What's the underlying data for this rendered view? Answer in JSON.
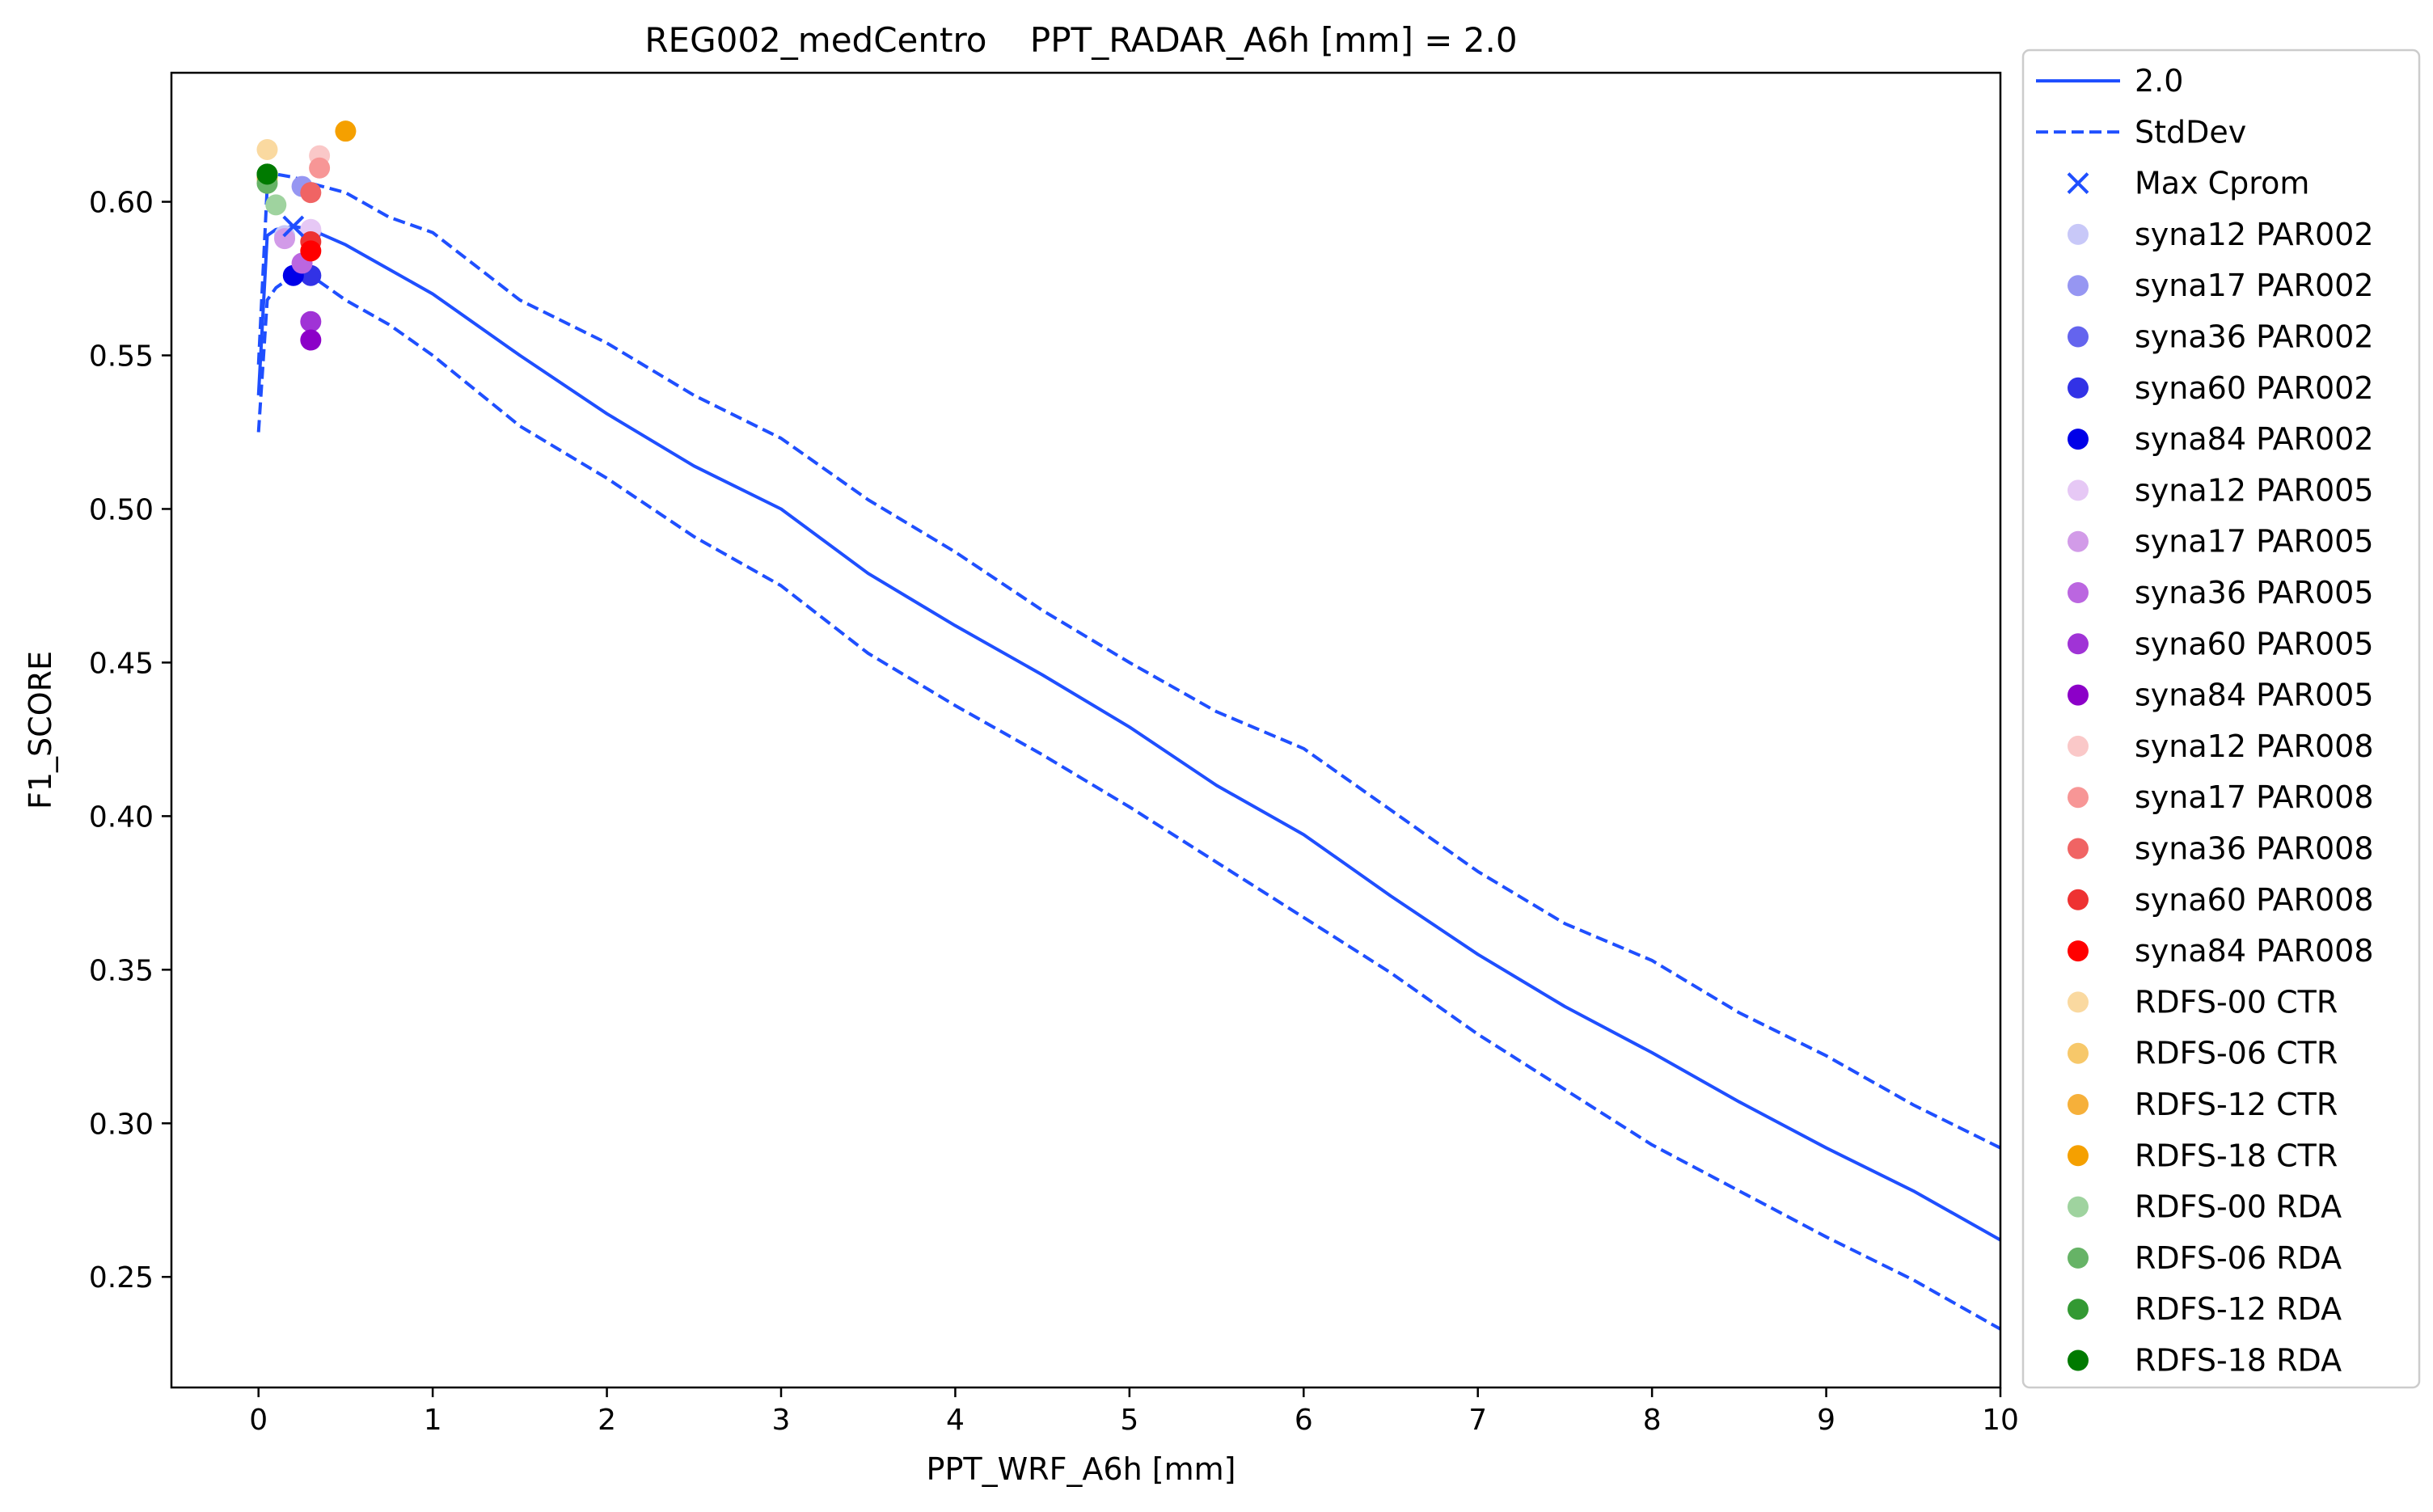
{
  "chart_data": {
    "type": "line",
    "title": "REG002_medCentro    PPT_RADAR_A6h [mm] = 2.0",
    "xlabel": "PPT_WRF_A6h [mm]",
    "ylabel": "F1_SCORE",
    "xlim": [
      -0.5,
      10
    ],
    "ylim": [
      0.214,
      0.642
    ],
    "xticks": [
      0,
      1,
      2,
      3,
      4,
      5,
      6,
      7,
      8,
      9,
      10
    ],
    "xtick_labels": [
      "0",
      "1",
      "2",
      "3",
      "4",
      "5",
      "6",
      "7",
      "8",
      "9",
      "10"
    ],
    "yticks": [
      0.25,
      0.3,
      0.35,
      0.4,
      0.45,
      0.5,
      0.55,
      0.6
    ],
    "ytick_labels": [
      "0.25",
      "0.30",
      "0.35",
      "0.40",
      "0.45",
      "0.50",
      "0.55",
      "0.60"
    ],
    "grid": false,
    "legend_position": "outside-right",
    "lines": [
      {
        "name": "2.0",
        "style": "solid",
        "color": "#1f4fff",
        "x": [
          0,
          0.05,
          0.1,
          0.2,
          0.3,
          0.5,
          0.75,
          1,
          1.5,
          2,
          2.5,
          3,
          3.5,
          4,
          4.5,
          5,
          5.5,
          6,
          6.5,
          7,
          7.5,
          8,
          8.5,
          9,
          9.5,
          10
        ],
        "y": [
          0.537,
          0.589,
          0.591,
          0.592,
          0.591,
          0.586,
          0.578,
          0.57,
          0.55,
          0.531,
          0.514,
          0.5,
          0.479,
          0.462,
          0.446,
          0.429,
          0.41,
          0.394,
          0.374,
          0.355,
          0.338,
          0.323,
          0.307,
          0.292,
          0.278,
          0.262
        ]
      },
      {
        "name": "StdDev",
        "style": "dashed",
        "color": "#1f4fff",
        "x": [
          0,
          0.05,
          0.1,
          0.2,
          0.3,
          0.5,
          0.75,
          1,
          1.5,
          2,
          2.5,
          3,
          3.5,
          4,
          4.5,
          5,
          5.5,
          6,
          6.5,
          7,
          7.5,
          8,
          8.5,
          9,
          9.5,
          10
        ],
        "y": [
          0.547,
          0.605,
          0.609,
          0.608,
          0.606,
          0.603,
          0.595,
          0.59,
          0.568,
          0.554,
          0.537,
          0.523,
          0.503,
          0.486,
          0.467,
          0.45,
          0.434,
          0.422,
          0.402,
          0.382,
          0.365,
          0.353,
          0.336,
          0.322,
          0.306,
          0.292
        ]
      },
      {
        "name": "",
        "style": "dashed",
        "color": "#1f4fff",
        "x": [
          0,
          0.05,
          0.1,
          0.2,
          0.3,
          0.5,
          0.75,
          1,
          1.5,
          2,
          2.5,
          3,
          3.5,
          4,
          4.5,
          5,
          5.5,
          6,
          6.5,
          7,
          7.5,
          8,
          8.5,
          9,
          9.5,
          10
        ],
        "y": [
          0.525,
          0.568,
          0.572,
          0.576,
          0.576,
          0.568,
          0.56,
          0.55,
          0.527,
          0.51,
          0.491,
          0.475,
          0.453,
          0.436,
          0.42,
          0.403,
          0.385,
          0.367,
          0.349,
          0.329,
          0.311,
          0.293,
          0.278,
          0.263,
          0.249,
          0.233
        ]
      }
    ],
    "max_marker": {
      "name": "Max Cprom",
      "marker": "x",
      "color": "#1f4fff",
      "x": 0.2,
      "y": 0.592
    },
    "points": [
      {
        "name": "syna12 PAR002",
        "color": "#c8c8f8",
        "x": 0.15,
        "y": 0.589
      },
      {
        "name": "syna17 PAR002",
        "color": "#9696f2",
        "x": 0.25,
        "y": 0.605
      },
      {
        "name": "syna36 PAR002",
        "color": "#6464ee",
        "x": 0.3,
        "y": 0.59
      },
      {
        "name": "syna60 PAR002",
        "color": "#3232e6",
        "x": 0.3,
        "y": 0.576
      },
      {
        "name": "syna84 PAR002",
        "color": "#0000e8",
        "x": 0.2,
        "y": 0.576
      },
      {
        "name": "syna12 PAR005",
        "color": "#e6c8f5",
        "x": 0.3,
        "y": 0.591
      },
      {
        "name": "syna17 PAR005",
        "color": "#d29be8",
        "x": 0.15,
        "y": 0.588
      },
      {
        "name": "syna36 PAR005",
        "color": "#bb66e0",
        "x": 0.25,
        "y": 0.58
      },
      {
        "name": "syna60 PAR005",
        "color": "#a033d6",
        "x": 0.3,
        "y": 0.561
      },
      {
        "name": "syna84 PAR005",
        "color": "#8c00c8",
        "x": 0.3,
        "y": 0.555
      },
      {
        "name": "syna12 PAR008",
        "color": "#fac8c8",
        "x": 0.35,
        "y": 0.615
      },
      {
        "name": "syna17 PAR008",
        "color": "#f79696",
        "x": 0.35,
        "y": 0.611
      },
      {
        "name": "syna36 PAR008",
        "color": "#f06464",
        "x": 0.3,
        "y": 0.603
      },
      {
        "name": "syna60 PAR008",
        "color": "#ee3232",
        "x": 0.3,
        "y": 0.587
      },
      {
        "name": "syna84 PAR008",
        "color": "#ff0000",
        "x": 0.3,
        "y": 0.584
      },
      {
        "name": "RDFS-00 CTR",
        "color": "#fad9a0",
        "x": 0.05,
        "y": 0.617
      },
      {
        "name": "RDFS-06 CTR",
        "color": "#f7c86a",
        "x": 0.05,
        "y": 0.607
      },
      {
        "name": "RDFS-12 CTR",
        "color": "#f6b03a",
        "x": 0.05,
        "y": 0.608
      },
      {
        "name": "RDFS-18 CTR",
        "color": "#f5a000",
        "x": 0.5,
        "y": 0.623
      },
      {
        "name": "RDFS-00 RDA",
        "color": "#9fd39f",
        "x": 0.1,
        "y": 0.599
      },
      {
        "name": "RDFS-06 RDA",
        "color": "#66b366",
        "x": 0.05,
        "y": 0.606
      },
      {
        "name": "RDFS-12 RDA",
        "color": "#339933",
        "x": 0.05,
        "y": 0.609
      },
      {
        "name": "RDFS-18 RDA",
        "color": "#007a00",
        "x": 0.05,
        "y": 0.609
      }
    ]
  }
}
